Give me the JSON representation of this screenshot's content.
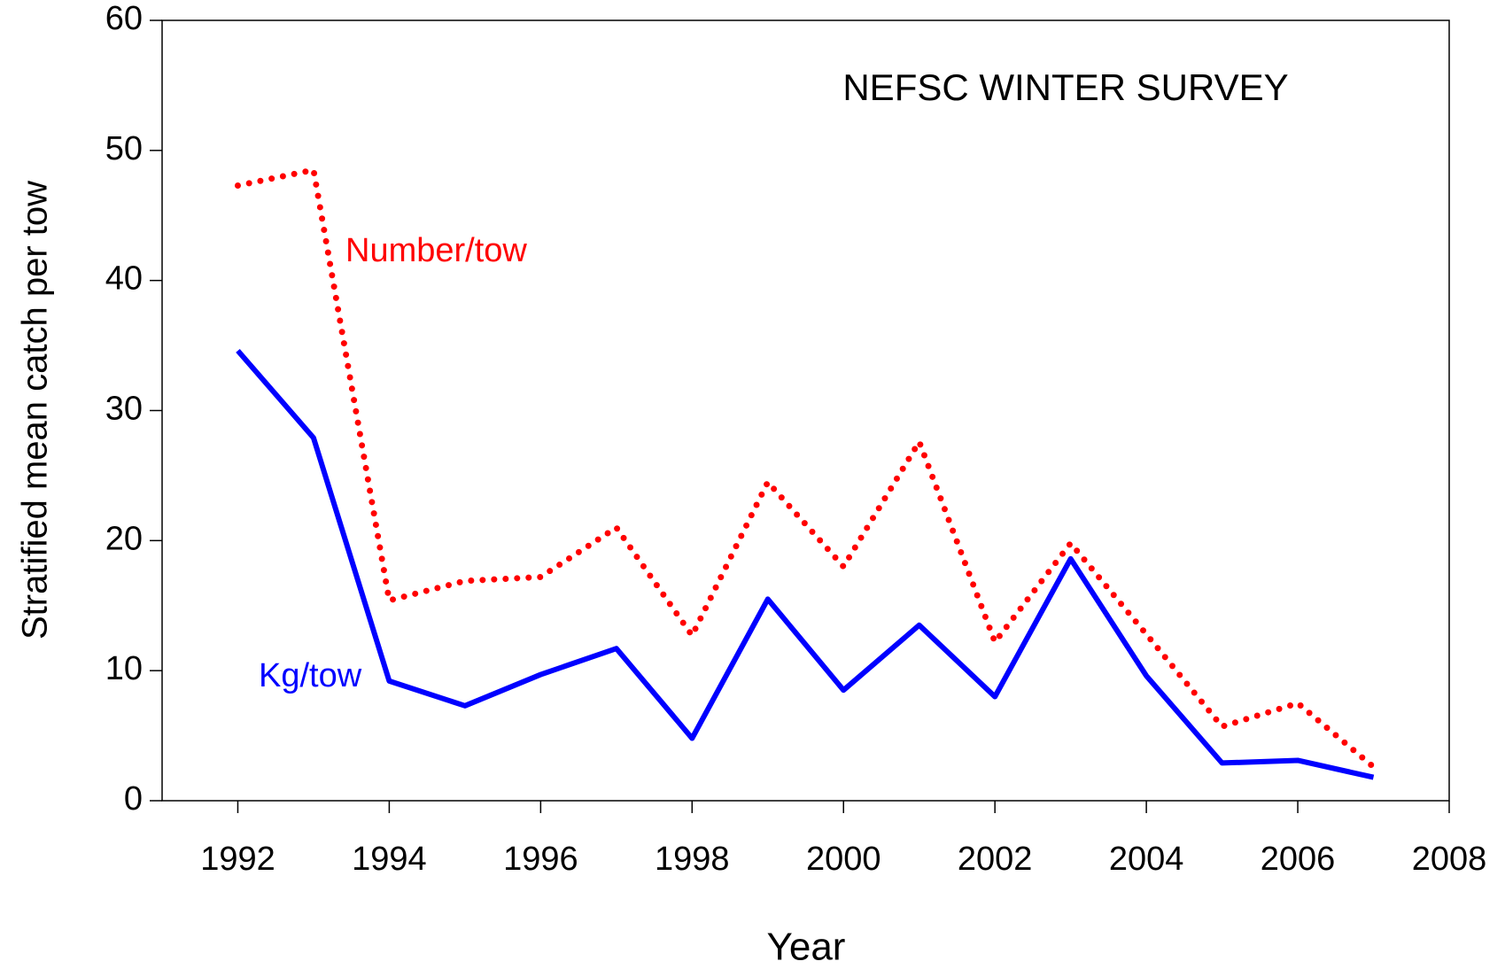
{
  "chart_data": {
    "type": "line",
    "annotation": "NEFSC WINTER SURVEY",
    "x_label": "Year",
    "y_label": "Stratified mean catch per tow",
    "x": [
      1992,
      1993,
      1994,
      1995,
      1996,
      1997,
      1998,
      1999,
      2000,
      2001,
      2002,
      2003,
      2004,
      2005,
      2006,
      2007
    ],
    "series": [
      {
        "name": "Number/tow",
        "color": "#ff0000",
        "style": "dotted",
        "values": [
          47.3,
          48.5,
          15.4,
          16.9,
          17.2,
          21.0,
          12.7,
          24.5,
          18.0,
          27.6,
          12.2,
          19.8,
          12.8,
          5.7,
          7.5,
          2.6
        ]
      },
      {
        "name": "Kg/tow",
        "color": "#0000ff",
        "style": "solid",
        "values": [
          34.6,
          27.9,
          9.2,
          7.3,
          9.7,
          11.7,
          4.8,
          15.5,
          8.5,
          13.5,
          8.0,
          18.6,
          9.6,
          2.9,
          3.1,
          1.8
        ]
      }
    ],
    "xlim": [
      1991,
      2008
    ],
    "xticks": [
      1992,
      1994,
      1996,
      1998,
      2000,
      2002,
      2004,
      2006,
      2008
    ],
    "ylim": [
      0,
      60
    ],
    "yticks": [
      0,
      10,
      20,
      30,
      40,
      50,
      60
    ],
    "grid": false
  }
}
